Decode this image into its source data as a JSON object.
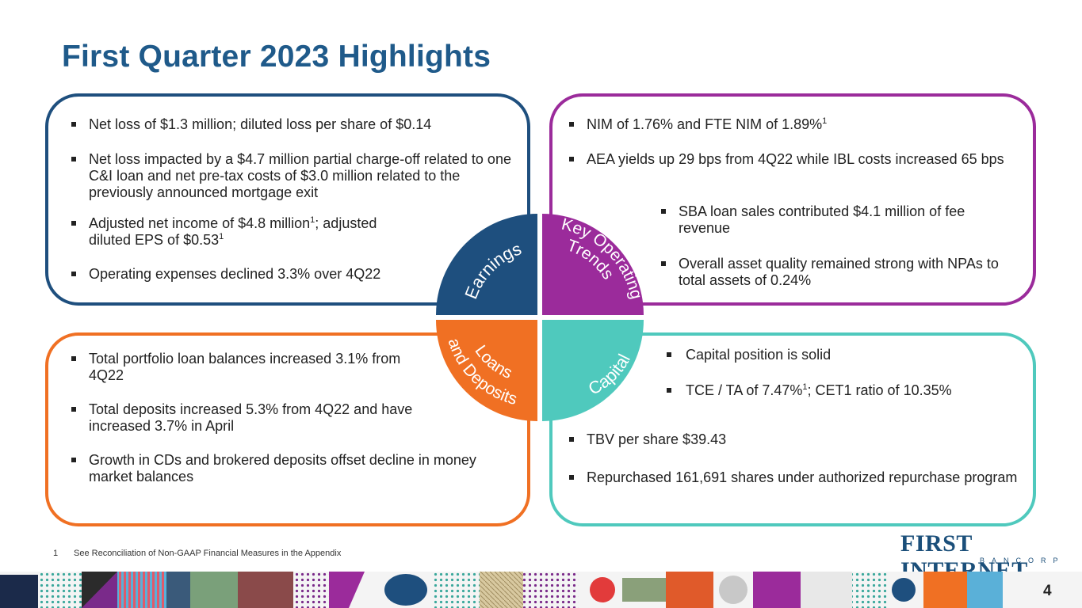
{
  "title": "First Quarter 2023 Highlights",
  "quadrants": {
    "earnings": {
      "label": "Earnings",
      "color": "#1e4f7e"
    },
    "trends": {
      "label_line1": "Key Operating",
      "label_line2": "Trends",
      "color": "#9b2b9b"
    },
    "loans": {
      "label_line1": "Loans",
      "label_line2": "and Deposits",
      "color": "#f07023"
    },
    "capital": {
      "label": "Capital",
      "color": "#4fc9bd"
    }
  },
  "earnings_bullets": {
    "b1": "Net loss of $1.3 million; diluted loss per share of $0.14",
    "b2": "Net loss impacted by a $4.7 million partial charge-off related to one C&I loan and net pre-tax costs of $3.0 million related to the previously announced mortgage exit",
    "b3_part1": "Adjusted net income of $4.8 million",
    "b3_part2": "; adjusted diluted EPS of $0.53",
    "b4": "Operating expenses declined 3.3% over 4Q22",
    "sup": "1"
  },
  "trends_bullets": {
    "b1": "NIM of 1.76% and FTE NIM of 1.89%",
    "b2": "AEA yields up 29 bps from 4Q22 while IBL costs increased 65 bps",
    "b3": "SBA loan sales contributed $4.1 million of fee revenue",
    "b4": "Overall asset quality remained strong with NPAs to total assets of 0.24%",
    "sup": "1"
  },
  "loans_bullets": {
    "b1": "Total portfolio loan balances increased 3.1% from 4Q22",
    "b2": "Total deposits increased 5.3% from 4Q22 and have increased 3.7% in April",
    "b3": "Growth in CDs and brokered deposits offset decline in money market balances"
  },
  "capital_bullets": {
    "b1": "Capital position is solid",
    "b2_part1": "TCE / TA of 7.47%",
    "b2_part2": "; CET1 ratio of 10.35%",
    "b3": "TBV per share $39.43",
    "b4": "Repurchased 161,691 shares under authorized repurchase program",
    "sup": "1"
  },
  "footnote": {
    "number": "1",
    "text": "See Reconciliation of Non-GAAP Financial Measures in the Appendix"
  },
  "logo": {
    "name": "FIRST INTERNET",
    "sub": "BANCORP"
  },
  "page_number": "4"
}
